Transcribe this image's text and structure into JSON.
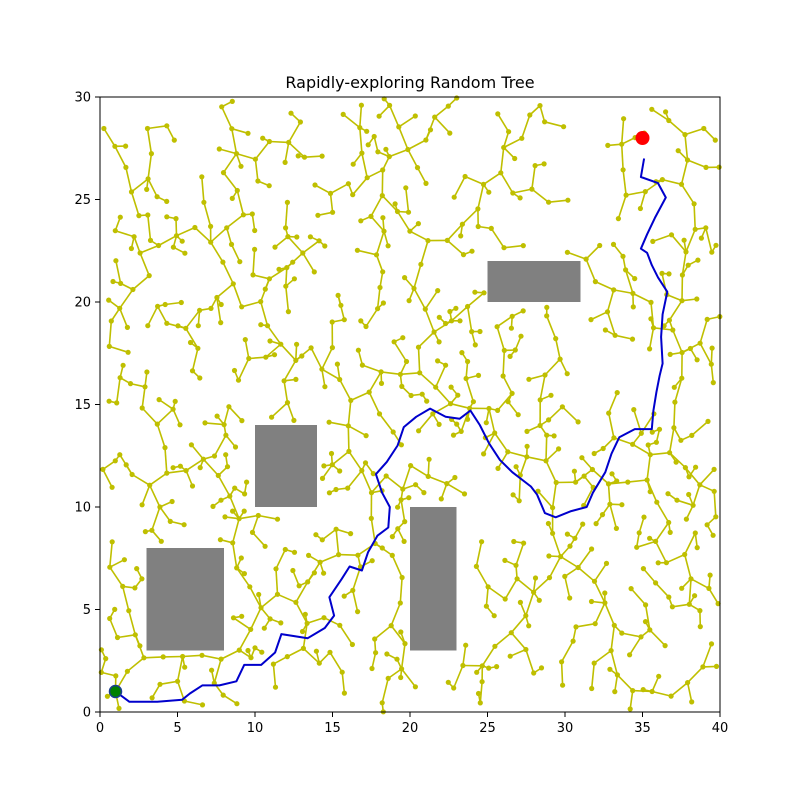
{
  "chart_data": {
    "type": "scatter",
    "title": "Rapidly-exploring Random Tree",
    "xlabel": "",
    "ylabel": "",
    "xlim": [
      0,
      40
    ],
    "ylim": [
      0,
      30
    ],
    "xticks": [
      0,
      5,
      10,
      15,
      20,
      25,
      30,
      35,
      40
    ],
    "yticks": [
      0,
      5,
      10,
      15,
      20,
      25,
      30
    ],
    "grid": false,
    "colors": {
      "tree": "#bfbf00",
      "path": "#0000cc",
      "start": "#008000",
      "goal": "#ff0000",
      "obstacle": "#808080"
    },
    "start": [
      1,
      1
    ],
    "goal": [
      35,
      28
    ],
    "obstacles": [
      {
        "x": 3,
        "y": 3,
        "width": 5,
        "height": 5
      },
      {
        "x": 10,
        "y": 10,
        "width": 4,
        "height": 4
      },
      {
        "x": 20,
        "y": 3,
        "width": 3,
        "height": 7
      },
      {
        "x": 25,
        "y": 20,
        "width": 6,
        "height": 2
      }
    ],
    "path": [
      [
        1,
        1
      ],
      [
        1.9,
        0.5
      ],
      [
        3.7,
        0.5
      ],
      [
        5.3,
        0.6
      ],
      [
        5.8,
        0.9
      ],
      [
        6.6,
        1.3
      ],
      [
        7.7,
        1.3
      ],
      [
        8.8,
        1.5
      ],
      [
        9.3,
        2.3
      ],
      [
        10.4,
        2.3
      ],
      [
        11.3,
        2.9
      ],
      [
        11.7,
        3.8
      ],
      [
        13.4,
        3.6
      ],
      [
        14.5,
        4.1
      ],
      [
        15.1,
        4.7
      ],
      [
        14.8,
        5.6
      ],
      [
        15.6,
        6.5
      ],
      [
        16.1,
        7.1
      ],
      [
        16.9,
        6.9
      ],
      [
        17.3,
        7.8
      ],
      [
        17.9,
        8.6
      ],
      [
        18.6,
        9.0
      ],
      [
        18.7,
        10.0
      ],
      [
        18.2,
        10.7
      ],
      [
        17.8,
        11.6
      ],
      [
        18.5,
        12.2
      ],
      [
        19.2,
        13.0
      ],
      [
        19.6,
        13.9
      ],
      [
        20.4,
        14.4
      ],
      [
        21.3,
        14.8
      ],
      [
        22.3,
        14.4
      ],
      [
        23.2,
        14.3
      ],
      [
        23.9,
        14.7
      ],
      [
        24.5,
        14.0
      ],
      [
        25.1,
        13.1
      ],
      [
        25.8,
        12.3
      ],
      [
        26.6,
        11.7
      ],
      [
        27.8,
        11.0
      ],
      [
        28.2,
        10.6
      ],
      [
        28.7,
        9.7
      ],
      [
        29.4,
        9.5
      ],
      [
        30.4,
        9.8
      ],
      [
        31.4,
        10.0
      ],
      [
        31.8,
        10.7
      ],
      [
        32.6,
        11.7
      ],
      [
        33.0,
        12.6
      ],
      [
        33.5,
        13.4
      ],
      [
        34.5,
        13.8
      ],
      [
        35.6,
        13.8
      ],
      [
        35.7,
        14.7
      ],
      [
        35.9,
        15.6
      ],
      [
        36.1,
        16.4
      ],
      [
        36.3,
        17.0
      ],
      [
        36.2,
        18.3
      ],
      [
        36.3,
        19.4
      ],
      [
        36.6,
        20.5
      ],
      [
        36.0,
        21.2
      ],
      [
        35.6,
        21.8
      ],
      [
        35.3,
        22.4
      ],
      [
        34.9,
        22.6
      ],
      [
        35.3,
        23.3
      ],
      [
        35.8,
        24.1
      ],
      [
        36.5,
        25.1
      ],
      [
        36.0,
        25.8
      ],
      [
        34.9,
        26.1
      ],
      [
        35.1,
        27.0
      ]
    ]
  }
}
